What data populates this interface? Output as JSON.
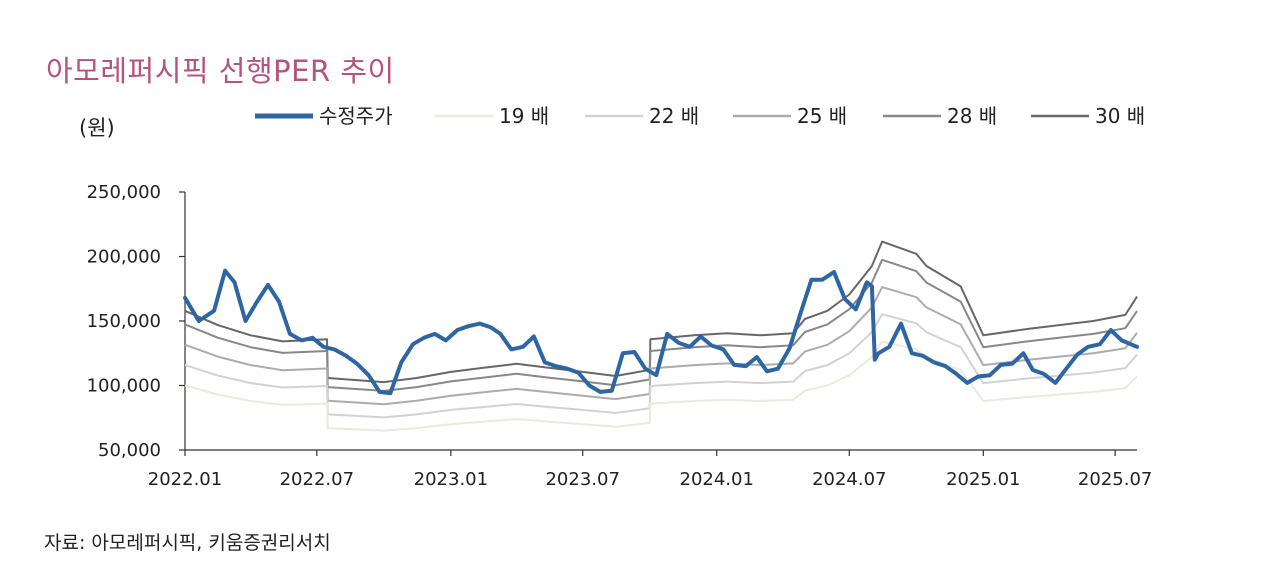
{
  "title": "아모레퍼시픽 선행PER 추이",
  "unit_label": "(원)",
  "source": "자료: 아모레퍼시픽, 키움증권리서치",
  "chart_data": {
    "type": "line",
    "title": "아모레퍼시픽 선행PER 추이",
    "ylabel": "(원)",
    "ylim": [
      50000,
      250000
    ],
    "y_ticks": [
      250000,
      200000,
      150000,
      100000,
      50000
    ],
    "y_tick_labels": [
      "250,000",
      "200,000",
      "150,000",
      "100,000",
      "50,000"
    ],
    "x_range": [
      "2022-01-01",
      "2025-07-31"
    ],
    "x_ticks": [
      "2022-01",
      "2022-07",
      "2023-01",
      "2023-07",
      "2024-01",
      "2024-07",
      "2025-01",
      "2025-07"
    ],
    "x_tick_labels": [
      "2022.01",
      "2022.07",
      "2023.01",
      "2023.07",
      "2024.01",
      "2024.07",
      "2025.01",
      "2025.07"
    ],
    "legend_position": "top",
    "grid": false,
    "eps_path": {
      "x": [
        "2022-01-01",
        "2022-02-15",
        "2022-04-01",
        "2022-05-15",
        "2022-07-15",
        "2022-07-16",
        "2022-10-01",
        "2022-11-15",
        "2023-01-01",
        "2023-02-15",
        "2023-04-01",
        "2023-05-15",
        "2023-07-01",
        "2023-08-15",
        "2023-10-01",
        "2023-10-02",
        "2023-12-01",
        "2024-01-15",
        "2024-03-01",
        "2024-04-15",
        "2024-05-01",
        "2024-06-01",
        "2024-07-01",
        "2024-08-01",
        "2024-08-15",
        "2024-10-01",
        "2024-10-15",
        "2024-12-01",
        "2025-01-01",
        "2025-03-01",
        "2025-04-15",
        "2025-06-01",
        "2025-07-15",
        "2025-07-31"
      ],
      "per19_values": [
        100000,
        93000,
        88000,
        85000,
        86000,
        67000,
        65000,
        67000,
        70000,
        72000,
        74000,
        72000,
        70000,
        68000,
        71000,
        86000,
        88000,
        89000,
        88000,
        89000,
        96000,
        100000,
        108000,
        122000,
        134000,
        128000,
        122000,
        112000,
        88000,
        91000,
        93000,
        95000,
        98000,
        107000
      ]
    },
    "series": [
      {
        "name": "수정주가",
        "color": "#2e66a4",
        "width": 4,
        "x": [
          "2022-01-01",
          "2022-01-20",
          "2022-02-10",
          "2022-02-25",
          "2022-03-10",
          "2022-03-25",
          "2022-04-10",
          "2022-04-25",
          "2022-05-10",
          "2022-05-25",
          "2022-06-10",
          "2022-06-25",
          "2022-07-10",
          "2022-07-25",
          "2022-08-10",
          "2022-08-25",
          "2022-09-10",
          "2022-09-25",
          "2022-10-10",
          "2022-10-25",
          "2022-11-10",
          "2022-11-25",
          "2022-12-10",
          "2022-12-25",
          "2023-01-10",
          "2023-01-25",
          "2023-02-10",
          "2023-02-25",
          "2023-03-10",
          "2023-03-25",
          "2023-04-10",
          "2023-04-25",
          "2023-05-10",
          "2023-05-25",
          "2023-06-10",
          "2023-06-25",
          "2023-07-10",
          "2023-07-25",
          "2023-08-10",
          "2023-08-25",
          "2023-09-10",
          "2023-09-25",
          "2023-10-10",
          "2023-10-25",
          "2023-11-10",
          "2023-11-25",
          "2023-12-10",
          "2023-12-25",
          "2024-01-10",
          "2024-01-25",
          "2024-02-10",
          "2024-02-25",
          "2024-03-10",
          "2024-03-25",
          "2024-04-10",
          "2024-04-25",
          "2024-05-10",
          "2024-05-25",
          "2024-06-10",
          "2024-06-25",
          "2024-07-10",
          "2024-07-25",
          "2024-08-01",
          "2024-08-05",
          "2024-08-10",
          "2024-08-25",
          "2024-09-10",
          "2024-09-25",
          "2024-10-10",
          "2024-10-25",
          "2024-11-10",
          "2024-11-25",
          "2024-12-10",
          "2024-12-25",
          "2025-01-10",
          "2025-01-25",
          "2025-02-10",
          "2025-02-25",
          "2025-03-10",
          "2025-03-25",
          "2025-04-10",
          "2025-04-25",
          "2025-05-10",
          "2025-05-25",
          "2025-06-10",
          "2025-06-25",
          "2025-07-10",
          "2025-07-31"
        ],
        "values": [
          168000,
          150000,
          158000,
          189000,
          180000,
          150000,
          165000,
          178000,
          165000,
          140000,
          135000,
          137000,
          130000,
          128000,
          123000,
          117000,
          108000,
          95000,
          94000,
          118000,
          132000,
          137000,
          140000,
          135000,
          143000,
          146000,
          148000,
          145000,
          140000,
          128000,
          130000,
          138000,
          118000,
          115000,
          113000,
          110000,
          100000,
          95000,
          96000,
          125000,
          126000,
          113000,
          108000,
          140000,
          133000,
          130000,
          138000,
          131000,
          128000,
          116000,
          115000,
          122000,
          111000,
          113000,
          129000,
          156000,
          182000,
          182000,
          188000,
          167000,
          159000,
          180000,
          177000,
          120000,
          125000,
          130000,
          148000,
          125000,
          123000,
          118000,
          115000,
          109000,
          102000,
          107000,
          108000,
          116000,
          117000,
          125000,
          112000,
          109000,
          102000,
          113000,
          124000,
          130000,
          132000,
          143000,
          135000,
          130000
        ]
      },
      {
        "name": "19 배",
        "color": "#eaeade",
        "width": 2,
        "multiple": 19
      },
      {
        "name": "22 배",
        "color": "#d2d2d2",
        "width": 2,
        "multiple": 22
      },
      {
        "name": "25 배",
        "color": "#acacac",
        "width": 2,
        "multiple": 25
      },
      {
        "name": "28 배",
        "color": "#888888",
        "width": 2,
        "multiple": 28
      },
      {
        "name": "30 배",
        "color": "#676767",
        "width": 2,
        "multiple": 30
      }
    ]
  }
}
